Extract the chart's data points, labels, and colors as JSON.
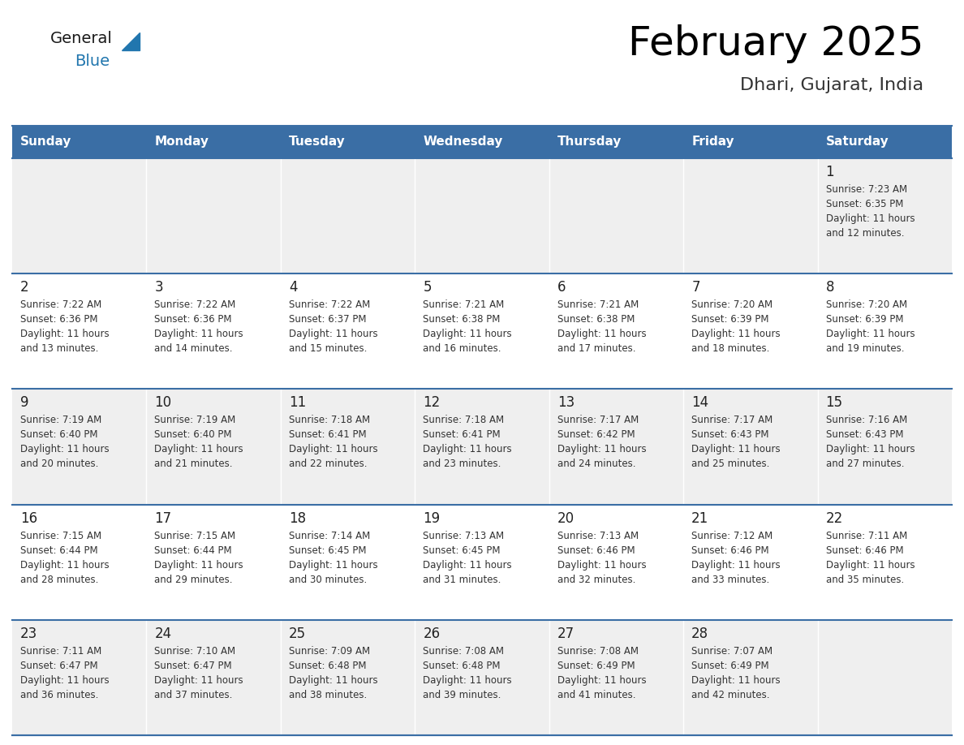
{
  "title": "February 2025",
  "subtitle": "Dhari, Gujarat, India",
  "days_of_week": [
    "Sunday",
    "Monday",
    "Tuesday",
    "Wednesday",
    "Thursday",
    "Friday",
    "Saturday"
  ],
  "header_bg": "#3A6EA5",
  "header_text": "#FFFFFF",
  "row_bg_odd": "#EFEFEF",
  "row_bg_even": "#FFFFFF",
  "border_color": "#3A6EA5",
  "text_color": "#333333",
  "calendar_data": [
    [
      null,
      null,
      null,
      null,
      null,
      null,
      {
        "day": "1",
        "sunrise": "7:23 AM",
        "sunset": "6:35 PM",
        "daylight_line1": "Daylight: 11 hours",
        "daylight_line2": "and 12 minutes."
      }
    ],
    [
      {
        "day": "2",
        "sunrise": "7:22 AM",
        "sunset": "6:36 PM",
        "daylight_line1": "Daylight: 11 hours",
        "daylight_line2": "and 13 minutes."
      },
      {
        "day": "3",
        "sunrise": "7:22 AM",
        "sunset": "6:36 PM",
        "daylight_line1": "Daylight: 11 hours",
        "daylight_line2": "and 14 minutes."
      },
      {
        "day": "4",
        "sunrise": "7:22 AM",
        "sunset": "6:37 PM",
        "daylight_line1": "Daylight: 11 hours",
        "daylight_line2": "and 15 minutes."
      },
      {
        "day": "5",
        "sunrise": "7:21 AM",
        "sunset": "6:38 PM",
        "daylight_line1": "Daylight: 11 hours",
        "daylight_line2": "and 16 minutes."
      },
      {
        "day": "6",
        "sunrise": "7:21 AM",
        "sunset": "6:38 PM",
        "daylight_line1": "Daylight: 11 hours",
        "daylight_line2": "and 17 minutes."
      },
      {
        "day": "7",
        "sunrise": "7:20 AM",
        "sunset": "6:39 PM",
        "daylight_line1": "Daylight: 11 hours",
        "daylight_line2": "and 18 minutes."
      },
      {
        "day": "8",
        "sunrise": "7:20 AM",
        "sunset": "6:39 PM",
        "daylight_line1": "Daylight: 11 hours",
        "daylight_line2": "and 19 minutes."
      }
    ],
    [
      {
        "day": "9",
        "sunrise": "7:19 AM",
        "sunset": "6:40 PM",
        "daylight_line1": "Daylight: 11 hours",
        "daylight_line2": "and 20 minutes."
      },
      {
        "day": "10",
        "sunrise": "7:19 AM",
        "sunset": "6:40 PM",
        "daylight_line1": "Daylight: 11 hours",
        "daylight_line2": "and 21 minutes."
      },
      {
        "day": "11",
        "sunrise": "7:18 AM",
        "sunset": "6:41 PM",
        "daylight_line1": "Daylight: 11 hours",
        "daylight_line2": "and 22 minutes."
      },
      {
        "day": "12",
        "sunrise": "7:18 AM",
        "sunset": "6:41 PM",
        "daylight_line1": "Daylight: 11 hours",
        "daylight_line2": "and 23 minutes."
      },
      {
        "day": "13",
        "sunrise": "7:17 AM",
        "sunset": "6:42 PM",
        "daylight_line1": "Daylight: 11 hours",
        "daylight_line2": "and 24 minutes."
      },
      {
        "day": "14",
        "sunrise": "7:17 AM",
        "sunset": "6:43 PM",
        "daylight_line1": "Daylight: 11 hours",
        "daylight_line2": "and 25 minutes."
      },
      {
        "day": "15",
        "sunrise": "7:16 AM",
        "sunset": "6:43 PM",
        "daylight_line1": "Daylight: 11 hours",
        "daylight_line2": "and 27 minutes."
      }
    ],
    [
      {
        "day": "16",
        "sunrise": "7:15 AM",
        "sunset": "6:44 PM",
        "daylight_line1": "Daylight: 11 hours",
        "daylight_line2": "and 28 minutes."
      },
      {
        "day": "17",
        "sunrise": "7:15 AM",
        "sunset": "6:44 PM",
        "daylight_line1": "Daylight: 11 hours",
        "daylight_line2": "and 29 minutes."
      },
      {
        "day": "18",
        "sunrise": "7:14 AM",
        "sunset": "6:45 PM",
        "daylight_line1": "Daylight: 11 hours",
        "daylight_line2": "and 30 minutes."
      },
      {
        "day": "19",
        "sunrise": "7:13 AM",
        "sunset": "6:45 PM",
        "daylight_line1": "Daylight: 11 hours",
        "daylight_line2": "and 31 minutes."
      },
      {
        "day": "20",
        "sunrise": "7:13 AM",
        "sunset": "6:46 PM",
        "daylight_line1": "Daylight: 11 hours",
        "daylight_line2": "and 32 minutes."
      },
      {
        "day": "21",
        "sunrise": "7:12 AM",
        "sunset": "6:46 PM",
        "daylight_line1": "Daylight: 11 hours",
        "daylight_line2": "and 33 minutes."
      },
      {
        "day": "22",
        "sunrise": "7:11 AM",
        "sunset": "6:46 PM",
        "daylight_line1": "Daylight: 11 hours",
        "daylight_line2": "and 35 minutes."
      }
    ],
    [
      {
        "day": "23",
        "sunrise": "7:11 AM",
        "sunset": "6:47 PM",
        "daylight_line1": "Daylight: 11 hours",
        "daylight_line2": "and 36 minutes."
      },
      {
        "day": "24",
        "sunrise": "7:10 AM",
        "sunset": "6:47 PM",
        "daylight_line1": "Daylight: 11 hours",
        "daylight_line2": "and 37 minutes."
      },
      {
        "day": "25",
        "sunrise": "7:09 AM",
        "sunset": "6:48 PM",
        "daylight_line1": "Daylight: 11 hours",
        "daylight_line2": "and 38 minutes."
      },
      {
        "day": "26",
        "sunrise": "7:08 AM",
        "sunset": "6:48 PM",
        "daylight_line1": "Daylight: 11 hours",
        "daylight_line2": "and 39 minutes."
      },
      {
        "day": "27",
        "sunrise": "7:08 AM",
        "sunset": "6:49 PM",
        "daylight_line1": "Daylight: 11 hours",
        "daylight_line2": "and 41 minutes."
      },
      {
        "day": "28",
        "sunrise": "7:07 AM",
        "sunset": "6:49 PM",
        "daylight_line1": "Daylight: 11 hours",
        "daylight_line2": "and 42 minutes."
      },
      null
    ]
  ],
  "logo_color_general": "#1a1a1a",
  "logo_color_blue": "#2176AE",
  "logo_triangle_color": "#2176AE"
}
